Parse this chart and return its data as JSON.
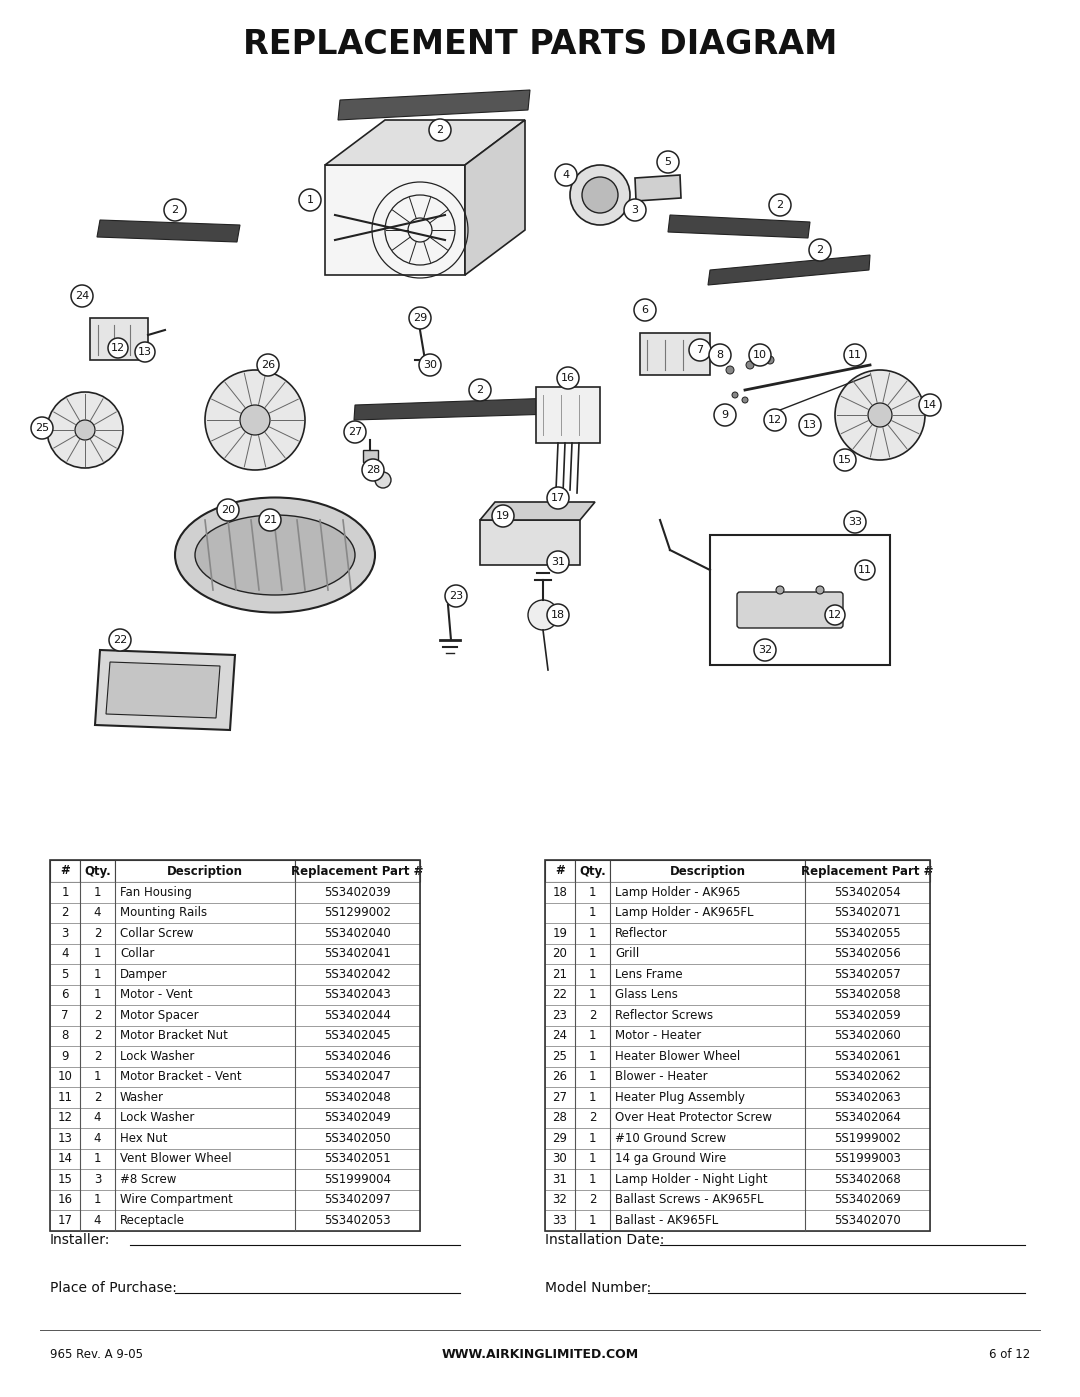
{
  "title": "REPLACEMENT PARTS DIAGRAM",
  "bg_color": "#ffffff",
  "title_fontsize": 24,
  "table_left": {
    "headers": [
      "#",
      "Qty.",
      "Description",
      "Replacement Part #"
    ],
    "col_aligns": [
      "center",
      "center",
      "left",
      "center"
    ],
    "rows": [
      [
        "1",
        "1",
        "Fan Housing",
        "5S3402039"
      ],
      [
        "2",
        "4",
        "Mounting Rails",
        "5S1299002"
      ],
      [
        "3",
        "2",
        "Collar Screw",
        "5S3402040"
      ],
      [
        "4",
        "1",
        "Collar",
        "5S3402041"
      ],
      [
        "5",
        "1",
        "Damper",
        "5S3402042"
      ],
      [
        "6",
        "1",
        "Motor - Vent",
        "5S3402043"
      ],
      [
        "7",
        "2",
        "Motor Spacer",
        "5S3402044"
      ],
      [
        "8",
        "2",
        "Motor Bracket Nut",
        "5S3402045"
      ],
      [
        "9",
        "2",
        "Lock Washer",
        "5S3402046"
      ],
      [
        "10",
        "1",
        "Motor Bracket - Vent",
        "5S3402047"
      ],
      [
        "11",
        "2",
        "Washer",
        "5S3402048"
      ],
      [
        "12",
        "4",
        "Lock Washer",
        "5S3402049"
      ],
      [
        "13",
        "4",
        "Hex Nut",
        "5S3402050"
      ],
      [
        "14",
        "1",
        "Vent Blower Wheel",
        "5S3402051"
      ],
      [
        "15",
        "3",
        "#8 Screw",
        "5S1999004"
      ],
      [
        "16",
        "1",
        "Wire Compartment",
        "5S3402097"
      ],
      [
        "17",
        "4",
        "Receptacle",
        "5S3402053"
      ]
    ]
  },
  "table_right": {
    "headers": [
      "#",
      "Qty.",
      "Description",
      "Replacement Part #"
    ],
    "col_aligns": [
      "center",
      "center",
      "left",
      "center"
    ],
    "rows": [
      [
        "18",
        "1",
        "Lamp Holder - AK965",
        "5S3402054"
      ],
      [
        "",
        "1",
        "Lamp Holder - AK965FL",
        "5S3402071"
      ],
      [
        "19",
        "1",
        "Reflector",
        "5S3402055"
      ],
      [
        "20",
        "1",
        "Grill",
        "5S3402056"
      ],
      [
        "21",
        "1",
        "Lens Frame",
        "5S3402057"
      ],
      [
        "22",
        "1",
        "Glass Lens",
        "5S3402058"
      ],
      [
        "23",
        "2",
        "Reflector Screws",
        "5S3402059"
      ],
      [
        "24",
        "1",
        "Motor - Heater",
        "5S3402060"
      ],
      [
        "25",
        "1",
        "Heater Blower Wheel",
        "5S3402061"
      ],
      [
        "26",
        "1",
        "Blower - Heater",
        "5S3402062"
      ],
      [
        "27",
        "1",
        "Heater Plug Assembly",
        "5S3402063"
      ],
      [
        "28",
        "2",
        "Over Heat Protector Screw",
        "5S3402064"
      ],
      [
        "29",
        "1",
        "#10 Ground Screw",
        "5S1999002"
      ],
      [
        "30",
        "1",
        "14 ga Ground Wire",
        "5S1999003"
      ],
      [
        "31",
        "1",
        "Lamp Holder - Night Light",
        "5S3402068"
      ],
      [
        "32",
        "2",
        "Ballast Screws - AK965FL",
        "5S3402069"
      ],
      [
        "33",
        "1",
        "Ballast - AK965FL",
        "5S3402070"
      ]
    ]
  },
  "footer_left": "965 Rev. A 9-05",
  "footer_center": "WWW.AIRKINGLIMITED.COM",
  "footer_right": "6 of 12",
  "installer_label": "Installer:",
  "install_date_label": "Installation Date:",
  "place_label": "Place of Purchase:",
  "model_label": "Model Number:"
}
